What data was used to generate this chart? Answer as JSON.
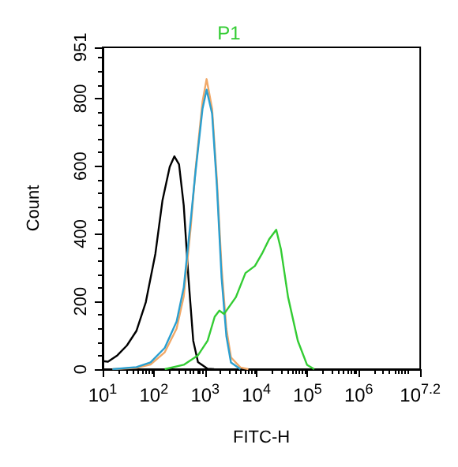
{
  "chart_data": {
    "type": "line",
    "title": "P1",
    "xlabel": "FITC-H",
    "ylabel": "Count",
    "log": "x",
    "marker": "none",
    "grid": false,
    "xlim": [
      10,
      15848932
    ],
    "xticks": [
      {
        "value": 10,
        "label": "10$^{1}$"
      },
      {
        "value": 100,
        "label": "10$^{2}$"
      },
      {
        "value": 1000,
        "label": "10$^{3}$"
      },
      {
        "value": 10000,
        "label": "10$^{4}$"
      },
      {
        "value": 100000,
        "label": "10$^{5}$"
      },
      {
        "value": 1000000,
        "label": "10$^{6}$"
      },
      {
        "value": 15848932,
        "label": "10$^{7.2}$"
      }
    ],
    "ylim": [
      0,
      951
    ],
    "yticks": [
      0,
      200,
      400,
      600,
      800,
      951
    ],
    "series": [
      {
        "color": "#000000",
        "x": [
          10,
          12.7,
          19.4,
          29.7,
          45.6,
          69.6,
          107,
          147,
          204,
          251,
          310,
          383,
          473,
          587,
          726,
          1120,
          1500
        ],
        "values": [
          24,
          22,
          41,
          70,
          113,
          198,
          341,
          498,
          598,
          629,
          605,
          484,
          270,
          84,
          21,
          1,
          0
        ]
      },
      {
        "color": "#f0a868",
        "x": [
          15.6,
          45.6,
          86,
          163,
          278,
          383,
          525,
          650,
          890,
          1070,
          1370,
          1700,
          2100,
          2600,
          3200,
          4900,
          7000
        ],
        "values": [
          0,
          4,
          14,
          50,
          120,
          215,
          420,
          590,
          790,
          857,
          770,
          560,
          300,
          120,
          35,
          5,
          0
        ]
      },
      {
        "color": "#2a9fd0",
        "x": [
          15.6,
          45.6,
          86,
          163,
          278,
          383,
          525,
          650,
          890,
          1070,
          1370,
          1700,
          2100,
          2600,
          3200,
          4900
        ],
        "values": [
          0,
          6,
          20,
          63,
          141,
          241,
          441,
          583,
          769,
          826,
          755,
          541,
          270,
          98,
          20,
          0
        ]
      },
      {
        "color": "#33cc33",
        "x": [
          163,
          383,
          726,
          1120,
          1540,
          1900,
          2340,
          4000,
          6140,
          9400,
          12900,
          17800,
          24500,
          30200,
          41700,
          64600,
          97700,
          135000
        ],
        "values": [
          0,
          13,
          41,
          84,
          155,
          173,
          163,
          213,
          284,
          305,
          341,
          384,
          412,
          355,
          213,
          84,
          13,
          0
        ]
      }
    ]
  }
}
